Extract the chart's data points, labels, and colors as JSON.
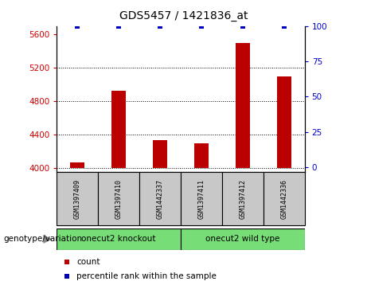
{
  "title": "GDS5457 / 1421836_at",
  "samples": [
    "GSM1397409",
    "GSM1397410",
    "GSM1442337",
    "GSM1397411",
    "GSM1397412",
    "GSM1442336"
  ],
  "counts": [
    4060,
    4920,
    4330,
    4290,
    5500,
    5100
  ],
  "percentiles": [
    100,
    100,
    100,
    100,
    100,
    100
  ],
  "ylim_left": [
    3950,
    5700
  ],
  "yticks_left": [
    4000,
    4400,
    4800,
    5200,
    5600
  ],
  "ylim_right": [
    -3.5,
    100
  ],
  "yticks_right": [
    0,
    25,
    50,
    75,
    100
  ],
  "bar_color": "#bb0000",
  "percentile_color": "#0000bb",
  "bar_width": 0.35,
  "groups": [
    {
      "label": "onecut2 knockout",
      "color": "#77dd77"
    },
    {
      "label": "onecut2 wild type",
      "color": "#77dd77"
    }
  ],
  "group_label": "genotype/variation",
  "legend_count_label": "count",
  "legend_percentile_label": "percentile rank within the sample",
  "background_color": "#ffffff",
  "left_tick_color": "#cc0000",
  "right_tick_color": "#0000cc",
  "sample_box_color": "#c8c8c8",
  "percentile_marker_size": 5
}
